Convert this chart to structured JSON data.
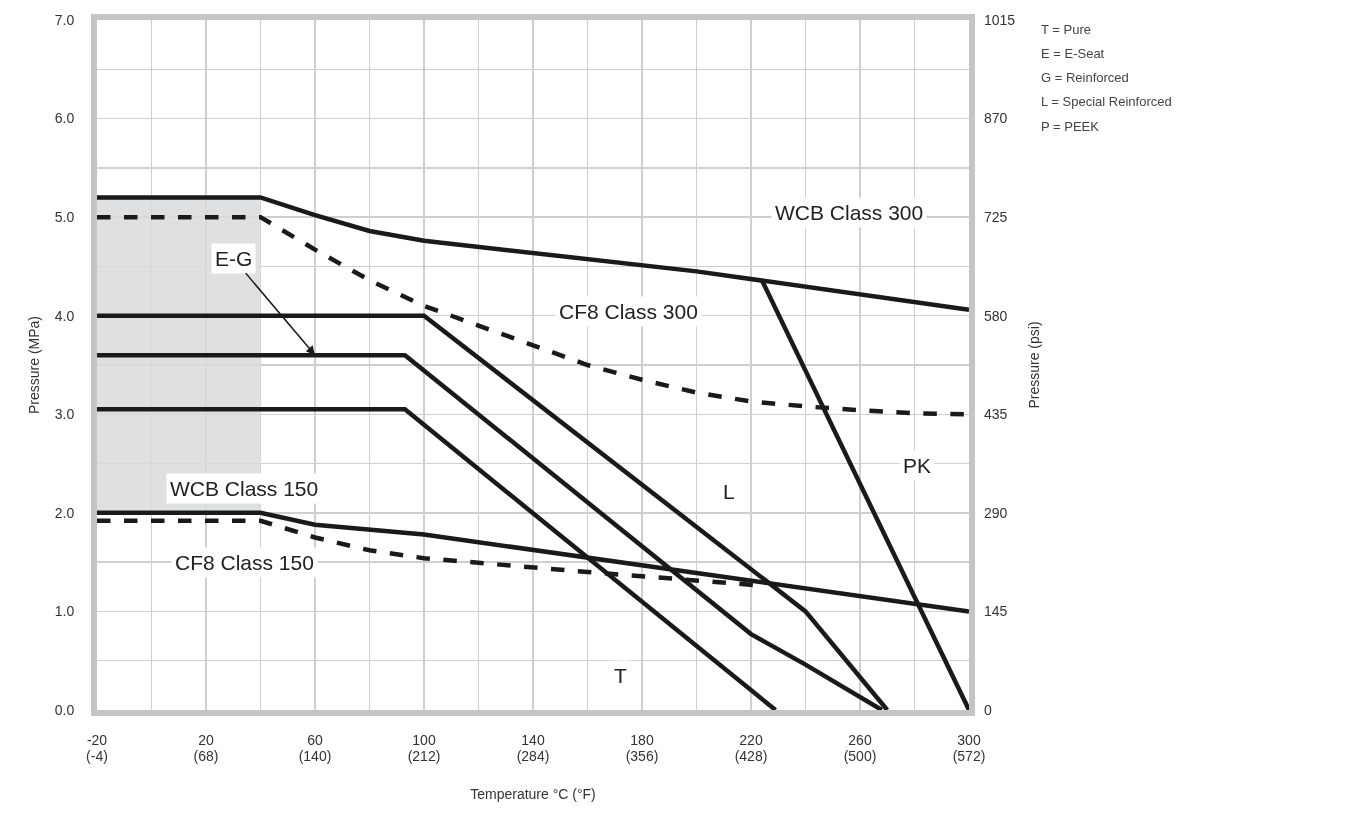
{
  "chart_data": {
    "type": "line",
    "xlabel": "Temperature °C (°F)",
    "ylabel": "Pressure (MPa)",
    "y2label": "Pressure (psi)",
    "xlim": [
      -20,
      300
    ],
    "xticks": [
      -20,
      {
        "value": 0,
        "label": null
      },
      20,
      {
        "value": 40,
        "label": null
      },
      60,
      {
        "value": 80,
        "label": null
      },
      100,
      {
        "value": 120,
        "label": null
      },
      140,
      {
        "value": 160,
        "label": null
      },
      180,
      {
        "value": 200,
        "label": null
      },
      220,
      {
        "value": 240,
        "label": null
      },
      260,
      {
        "value": 280,
        "label": null
      },
      300
    ],
    "x2lim": [
      -4,
      572
    ],
    "x2ticks": [
      {
        "value": -4,
        "label": "(-4)"
      },
      {
        "value": 68,
        "label": "(68)"
      },
      {
        "value": 140,
        "label": "(140)"
      },
      {
        "value": 212,
        "label": "(212)"
      },
      {
        "value": 284,
        "label": "(284)"
      },
      {
        "value": 356,
        "label": "(356)"
      },
      {
        "value": 428,
        "label": "(428)"
      },
      {
        "value": 500,
        "label": "(500)"
      },
      {
        "value": 572,
        "label": "(572)"
      }
    ],
    "ylim": [
      0,
      7
    ],
    "yticks": [
      {
        "value": 0,
        "label": "0.0"
      },
      {
        "value": 0.5,
        "label": null
      },
      {
        "value": 1,
        "label": "1.0"
      },
      {
        "value": 1.5,
        "label": null
      },
      {
        "value": 2,
        "label": "2.0"
      },
      {
        "value": 2.5,
        "label": null
      },
      {
        "value": 3,
        "label": "3.0"
      },
      {
        "value": 3.5,
        "label": null
      },
      {
        "value": 4,
        "label": "4.0"
      },
      {
        "value": 4.5,
        "label": null
      },
      {
        "value": 5,
        "label": "5.0"
      },
      {
        "value": 5.5,
        "label": null
      },
      {
        "value": 6,
        "label": "6.0"
      },
      {
        "value": 6.5,
        "label": null
      },
      {
        "value": 7,
        "label": "7.0"
      }
    ],
    "y2lim": [
      0,
      1015
    ],
    "y2ticks": [
      0,
      145,
      290,
      435,
      580,
      725,
      870,
      1015
    ],
    "grid": true,
    "marker": "none",
    "series": [
      {
        "type": "bar",
        "color": "#d9dadc",
        "x": [
          10
        ],
        "base": [
          2
        ],
        "values": [
          3.2
        ]
      },
      {
        "color": "#1a1a1a",
        "line_style": "solid",
        "x": [
          -20,
          40,
          60,
          80,
          100,
          200,
          300
        ],
        "values": [
          5.2,
          5.2,
          5.02,
          4.86,
          4.76,
          4.45,
          4.06
        ]
      },
      {
        "color": "#1a1a1a",
        "line_style": "dashed",
        "x": [
          -20,
          40,
          60,
          80,
          100,
          120,
          140,
          160,
          180,
          200,
          220,
          240,
          260,
          280,
          300
        ],
        "values": [
          5.0,
          5.0,
          4.67,
          4.36,
          4.1,
          3.9,
          3.7,
          3.5,
          3.35,
          3.22,
          3.13,
          3.08,
          3.04,
          3.01,
          3.0
        ]
      },
      {
        "color": "#1a1a1a",
        "line_style": "solid",
        "x": [
          -20,
          100,
          240,
          270
        ],
        "values": [
          4.0,
          4.0,
          1.0,
          0
        ]
      },
      {
        "color": "#1a1a1a",
        "line_style": "solid",
        "x": [
          -20,
          93,
          220,
          240,
          268
        ],
        "values": [
          3.6,
          3.6,
          0.77,
          0.46,
          0
        ]
      },
      {
        "color": "#1a1a1a",
        "line_style": "solid",
        "x": [
          -20,
          93,
          229
        ],
        "values": [
          3.05,
          3.05,
          0
        ]
      },
      {
        "color": "#1a1a1a",
        "line_style": "solid",
        "x": [
          224,
          300
        ],
        "values": [
          4.36,
          0
        ]
      },
      {
        "color": "#1a1a1a",
        "line_style": "solid",
        "x": [
          -20,
          40,
          60,
          100,
          200,
          300
        ],
        "values": [
          2.0,
          2.0,
          1.88,
          1.78,
          1.39,
          1.0
        ]
      },
      {
        "color": "#1a1a1a",
        "line_style": "dashed",
        "x": [
          -20,
          40,
          60,
          80,
          100,
          160,
          225
        ],
        "values": [
          1.92,
          1.92,
          1.75,
          1.62,
          1.54,
          1.4,
          1.26
        ]
      }
    ],
    "annotations": [
      "WCB Class 300",
      "CF8 Class 300",
      {
        "text": "E-G",
        "x": 60,
        "y": 3.6
      },
      "WCB Class 150",
      "CF8 Class 150",
      {
        "text": "L",
        "x": 212,
        "y": 2.22
      },
      {
        "text": "PK",
        "x": 281,
        "y": 2.48
      },
      {
        "text": "T",
        "x": 172,
        "y": 0.35
      },
      "T = Pure",
      "E = E-Seat",
      "G = Reinforced",
      "L = Special Reinforced",
      "P = PEEK"
    ]
  }
}
